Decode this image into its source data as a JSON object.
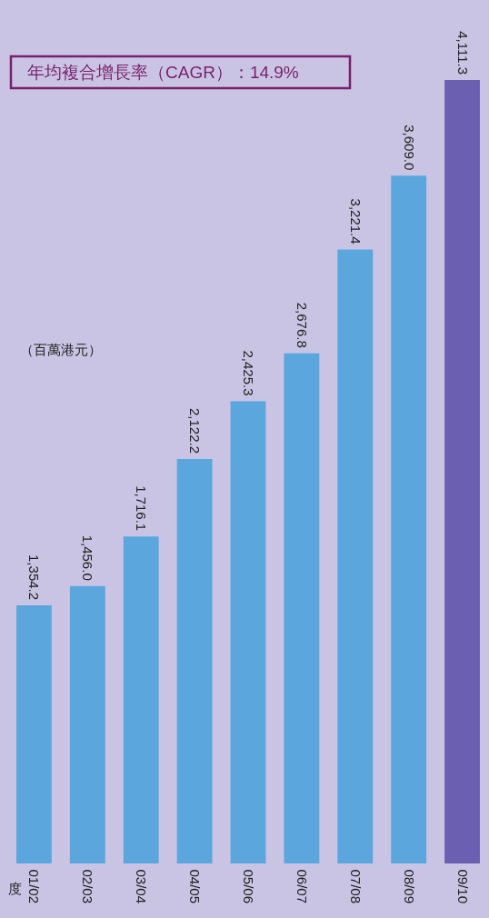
{
  "chart_data": {
    "type": "bar",
    "xlabel": "度",
    "ylabel": "（百萬港元）",
    "annotations": [
      "年均複合增長率（CAGR）：14.9%"
    ],
    "categories": [
      "01/02",
      "02/03",
      "03/04",
      "04/05",
      "05/06",
      "06/07",
      "07/08",
      "08/09",
      "09/10"
    ],
    "values": [
      1354.2,
      1456.0,
      1716.1,
      2122.2,
      2425.3,
      2676.8,
      3221.4,
      3609.0,
      4111.3
    ],
    "colors": [
      "#5ba7dd",
      "#5ba7dd",
      "#5ba7dd",
      "#5ba7dd",
      "#5ba7dd",
      "#5ba7dd",
      "#5ba7dd",
      "#5ba7dd",
      "#6a5fb0"
    ],
    "value_labels": [
      "1,354.2",
      "1,456.0",
      "1,716.1",
      "2,122.2",
      "2,425.3",
      "2,676.8",
      "3,221.4",
      "3,609.0",
      "4,111.3"
    ]
  }
}
